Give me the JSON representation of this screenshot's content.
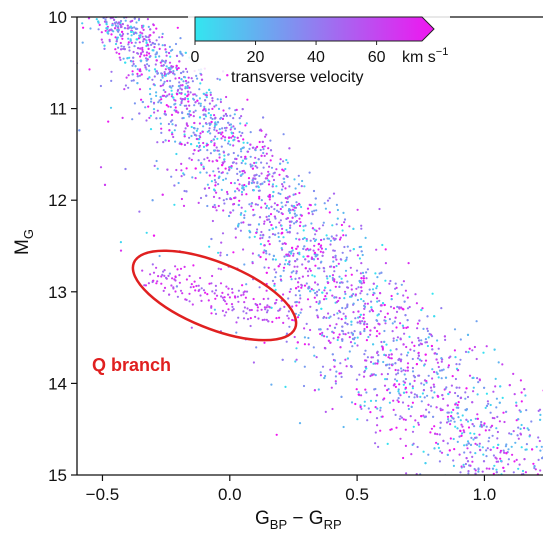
{
  "chart_data": {
    "type": "scatter",
    "title": "",
    "xlabel": {
      "main": "G",
      "sub1": "BP",
      "minus": " − ",
      "main2": "G",
      "sub2": "RP"
    },
    "ylabel": {
      "main": "M",
      "sub": "G"
    },
    "xlim": [
      -0.6,
      1.23
    ],
    "ylim": [
      15,
      10
    ],
    "y_inverted": true,
    "grid": false,
    "x_ticks": [
      "−0.5",
      "0.0",
      "0.5",
      "1.0"
    ],
    "x_tick_values": [
      -0.5,
      0.0,
      0.5,
      1.0
    ],
    "y_ticks": [
      "10",
      "11",
      "12",
      "13",
      "14",
      "15"
    ],
    "y_tick_values": [
      10,
      11,
      12,
      13,
      14,
      15
    ],
    "colorbar": {
      "label": "transverse velocity",
      "unit_main": "km s",
      "unit_exp": "−1",
      "ticks": [
        "0",
        "20",
        "40",
        "60"
      ],
      "tick_values": [
        0,
        20,
        40,
        60
      ],
      "range": [
        0,
        75
      ],
      "extend": "max",
      "placement": "top-center",
      "colors": [
        "#33e6f0",
        "#f015f0"
      ]
    },
    "main_sequence": {
      "description_points_color_mag": [
        [
          -0.45,
          10.0
        ],
        [
          -0.25,
          10.6
        ],
        [
          -0.05,
          11.3
        ],
        [
          0.15,
          12.0
        ],
        [
          0.35,
          12.7
        ],
        [
          0.55,
          13.4
        ],
        [
          0.75,
          14.0
        ],
        [
          0.95,
          14.5
        ],
        [
          1.2,
          15.0
        ]
      ],
      "color_range": [
        0,
        75
      ]
    },
    "annotations": [
      {
        "type": "ellipse",
        "center": [
          -0.06,
          13.04
        ],
        "semi_axes_data": [
          0.3,
          0.3
        ],
        "angle_deg": 22,
        "color": "#e02020"
      },
      {
        "type": "text",
        "text": "Q branch",
        "position_data": [
          -0.58,
          13.7
        ],
        "color": "#e02020"
      }
    ]
  }
}
